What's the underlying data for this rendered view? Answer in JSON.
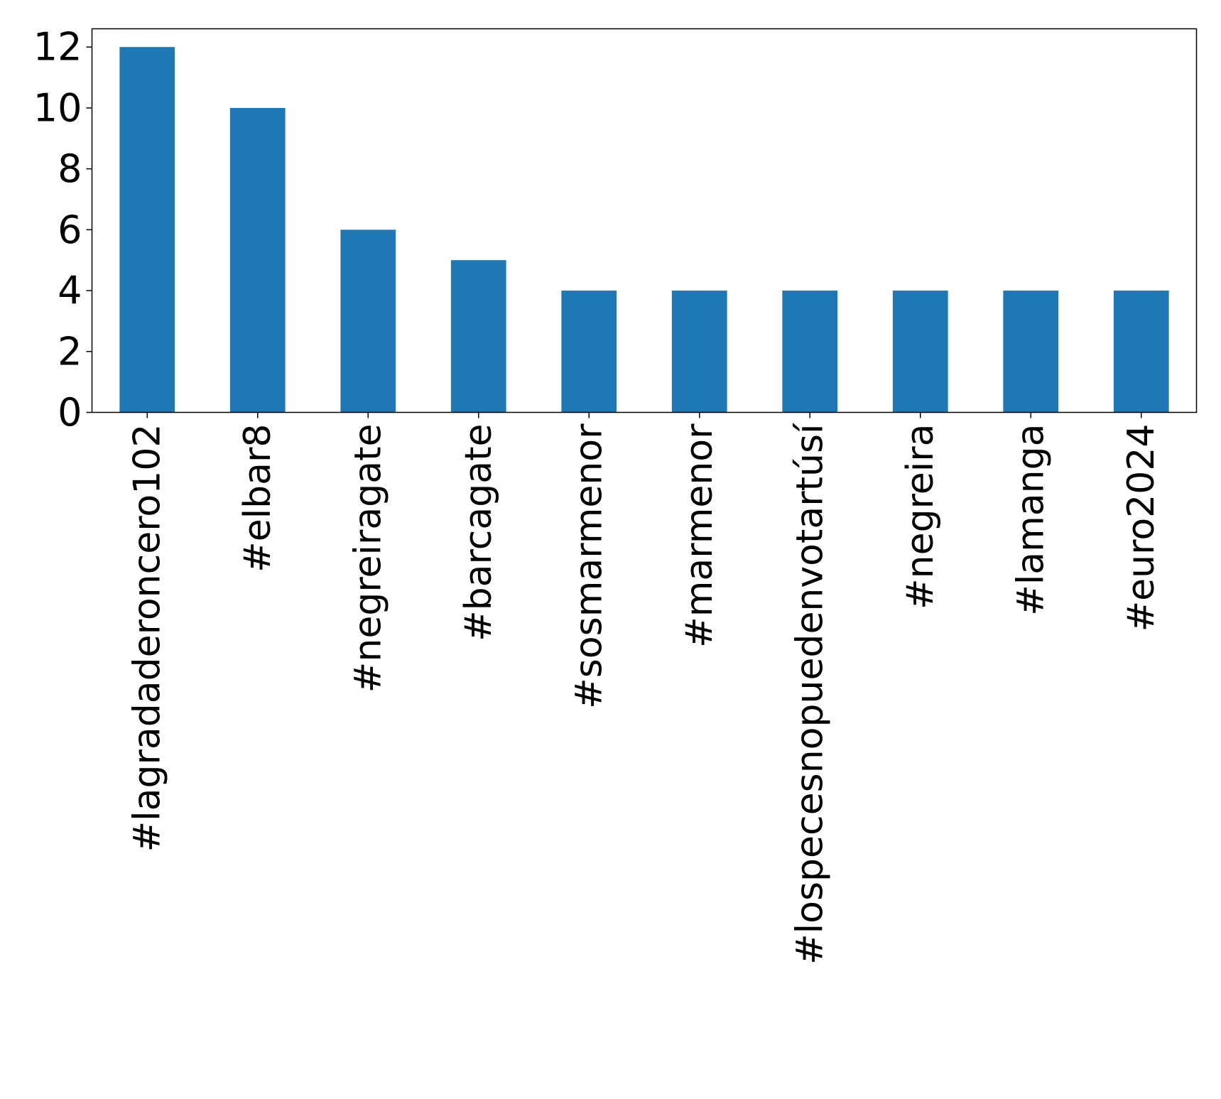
{
  "chart_data": {
    "type": "bar",
    "title": "",
    "xlabel": "",
    "ylabel": "",
    "categories": [
      "#lagradaderoncero102",
      "#elbar8",
      "#negreiragate",
      "#barcagate",
      "#sosmarmenor",
      "#marmenor",
      "#lospecesnopuedenvotartúsí",
      "#negreira",
      "#lamanga",
      "#euro2024"
    ],
    "values": [
      12,
      10,
      6,
      5,
      4,
      4,
      4,
      4,
      4,
      4
    ],
    "ylim": [
      0,
      12.6
    ],
    "yticks": [
      "0",
      "2",
      "4",
      "6",
      "8",
      "10",
      "12"
    ],
    "bar_color": "#1f77b4",
    "grid": false,
    "legend": "none"
  }
}
